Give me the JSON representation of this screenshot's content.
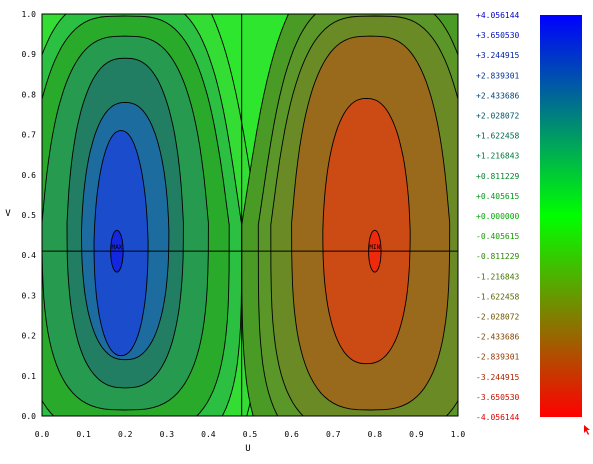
{
  "chart_data": {
    "type": "contour",
    "xlabel": "U",
    "ylabel": "V",
    "xlim": [
      0.0,
      1.0
    ],
    "ylim": [
      0.0,
      1.0
    ],
    "x_ticks": [
      "0.0",
      "0.1",
      "0.2",
      "0.3",
      "0.4",
      "0.5",
      "0.6",
      "0.7",
      "0.8",
      "0.9",
      "1.0"
    ],
    "y_ticks": [
      "0.0",
      "0.1",
      "0.2",
      "0.3",
      "0.4",
      "0.5",
      "0.6",
      "0.7",
      "0.8",
      "0.9",
      "1.0"
    ],
    "crosshair": {
      "u": 0.48,
      "v": 0.41
    },
    "extrema": [
      {
        "label": "MAX",
        "u": 0.18,
        "v": 0.41
      },
      {
        "label": "MIN",
        "u": 0.8,
        "v": 0.41
      }
    ],
    "levels": [
      {
        "label": "+4.056144",
        "value": 4.056144
      },
      {
        "label": "+3.650530",
        "value": 3.65053
      },
      {
        "label": "+3.244915",
        "value": 3.244915
      },
      {
        "label": "+2.839301",
        "value": 2.839301
      },
      {
        "label": "+2.433686",
        "value": 2.433686
      },
      {
        "label": "+2.028072",
        "value": 2.028072
      },
      {
        "label": "+1.622458",
        "value": 1.622458
      },
      {
        "label": "+1.216843",
        "value": 1.216843
      },
      {
        "label": "+0.811229",
        "value": 0.811229
      },
      {
        "label": "+0.405615",
        "value": 0.405615
      },
      {
        "label": "+0.000000",
        "value": 0.0
      },
      {
        "label": "-0.405615",
        "value": -0.405615
      },
      {
        "label": "-0.811229",
        "value": -0.811229
      },
      {
        "label": "-1.216843",
        "value": -1.216843
      },
      {
        "label": "-1.622458",
        "value": -1.622458
      },
      {
        "label": "-2.028072",
        "value": -2.028072
      },
      {
        "label": "-2.433686",
        "value": -2.433686
      },
      {
        "label": "-2.839301",
        "value": -2.839301
      },
      {
        "label": "-3.244915",
        "value": -3.244915
      },
      {
        "label": "-3.650530",
        "value": -3.65053
      },
      {
        "label": "-4.056144",
        "value": -4.056144
      }
    ],
    "colorbar": {
      "top_color": "#0000ff",
      "mid_color": "#00ff00",
      "bottom_color": "#ff0000"
    },
    "regions": [
      {
        "level_index": 10,
        "color": "#33dd33"
      },
      {
        "level_index": 9,
        "color": "#2cc042"
      },
      {
        "level_index": 9,
        "color": "#2aaa2a"
      },
      {
        "level_index": 8,
        "color": "#269a4e"
      },
      {
        "level_index": 7,
        "color": "#227e62"
      },
      {
        "level_index": 6,
        "color": "#1d6ca0"
      },
      {
        "level_index": 4,
        "color": "#1a4ccc"
      },
      {
        "level_index": 2,
        "color": "#1427e0"
      },
      {
        "level_index": 11,
        "color": "#4a9a26"
      },
      {
        "level_index": 12,
        "color": "#5a9628"
      },
      {
        "level_index": 13,
        "color": "#6a8a26"
      },
      {
        "level_index": 14,
        "color": "#9a6a1c"
      },
      {
        "level_index": 16,
        "color": "#cc4a14"
      },
      {
        "level_index": 18,
        "color": "#ee2a0c"
      }
    ]
  },
  "colors": {
    "background_field": "#2ee62e",
    "positive_text": "#0000cc",
    "zero_text": "#00aa00",
    "negative_text": "#cc0000",
    "axis_text": "#000000"
  }
}
